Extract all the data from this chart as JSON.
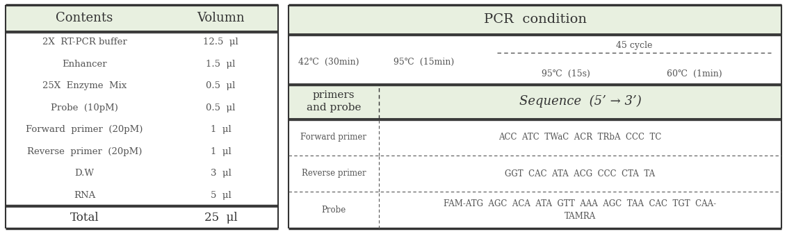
{
  "header_bg": "#e8f0e0",
  "white_bg": "#ffffff",
  "border_color": "#333333",
  "text_color": "#333333",
  "light_text": "#555555",
  "left_table": {
    "header": [
      "Contents",
      "Volumn"
    ],
    "rows": [
      [
        "2X  RT-PCR buffer",
        "12.5  μl"
      ],
      [
        "Enhancer",
        "1.5  μl"
      ],
      [
        "25X  Enzyme  Mix",
        "0.5  μl"
      ],
      [
        "Probe  (10pM)",
        "0.5  μl"
      ],
      [
        "Forward  primer  (20pM)",
        "1  μl"
      ],
      [
        "Reverse  primer  (20pM)",
        "1  μl"
      ],
      [
        "D.W",
        "3  μl"
      ],
      [
        "RNA",
        "5  μl"
      ]
    ],
    "total": [
      "Total",
      "25  μl"
    ]
  },
  "right_table": {
    "pcr_title": "PCR  condition",
    "cycle_label": "45 cycle",
    "step1": "42℃  (30min)",
    "step2": "95℃  (15min)",
    "step3": "95℃  (15s)",
    "step4": "60℃  (1min)",
    "header_left": "primers\nand probe",
    "header_right": "Sequence  (5’ → 3’)",
    "forward_label": "Forward primer",
    "forward_seq": "ACC  ATC  TWaC  ACR  TRbA  CCC  TC",
    "reverse_label": "Reverse primer",
    "reverse_seq": "GGT  CAC  ATA  ACG  CCC  CTA  TA",
    "probe_label": "Probe",
    "probe_seq": "FAM-ATG  AGC  ACA  ATA  GTT  AAA  AGC  TAA  CAC  TGT  CAA-\nTAMRA"
  }
}
